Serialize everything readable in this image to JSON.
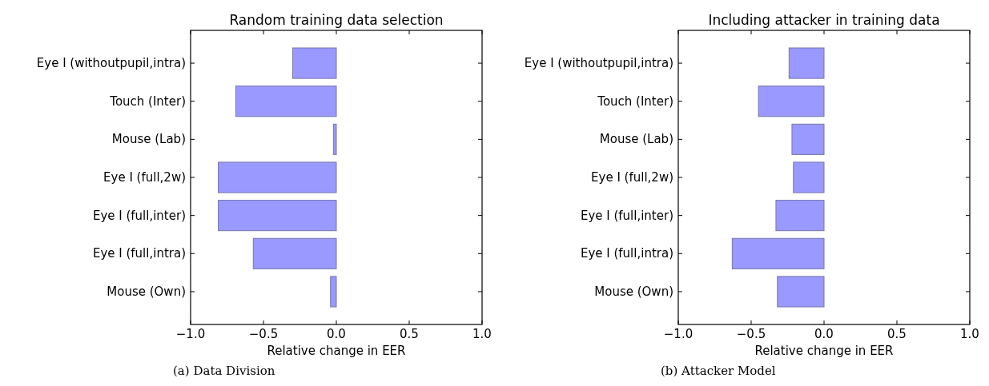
{
  "chart_data": [
    {
      "type": "bar",
      "orientation": "horizontal",
      "title": "Random training data selection",
      "xlabel": "Relative change in EER",
      "categories": [
        "Eye I (withoutpupil,intra)",
        "Touch (Inter)",
        "Mouse (Lab)",
        "Eye I (full,2w)",
        "Eye I (full,inter)",
        "Eye I (full,intra)",
        "Mouse (Own)"
      ],
      "values": [
        -0.3,
        -0.69,
        -0.02,
        -0.81,
        -0.81,
        -0.57,
        -0.04
      ],
      "color": "#9999ff",
      "xlim": [
        -1,
        1
      ],
      "xticks": [
        {
          "value": -1,
          "label": "−1.0"
        },
        {
          "value": -0.5,
          "label": "−0.5"
        },
        {
          "value": 0,
          "label": "0.0"
        },
        {
          "value": 0.5,
          "label": "0.5"
        },
        {
          "value": 1,
          "label": "1.0"
        }
      ],
      "annotations": [
        "(a) Data Division"
      ]
    },
    {
      "type": "bar",
      "orientation": "horizontal",
      "title": "Including attacker in training data",
      "xlabel": "Relative change in EER",
      "categories": [
        "Eye I (withoutpupil,intra)",
        "Touch (Inter)",
        "Mouse (Lab)",
        "Eye I (full,2w)",
        "Eye I (full,inter)",
        "Eye I (full,intra)",
        "Mouse (Own)"
      ],
      "values": [
        -0.24,
        -0.45,
        -0.22,
        -0.21,
        -0.33,
        -0.63,
        -0.32
      ],
      "color": "#9999ff",
      "xlim": [
        -1,
        1
      ],
      "xticks": [
        {
          "value": -1,
          "label": "−1.0"
        },
        {
          "value": -0.5,
          "label": "−0.5"
        },
        {
          "value": 0,
          "label": "0.0"
        },
        {
          "value": 0.5,
          "label": "0.5"
        },
        {
          "value": 1,
          "label": "1.0"
        }
      ],
      "annotations": [
        "(b) Attacker Model"
      ]
    }
  ]
}
